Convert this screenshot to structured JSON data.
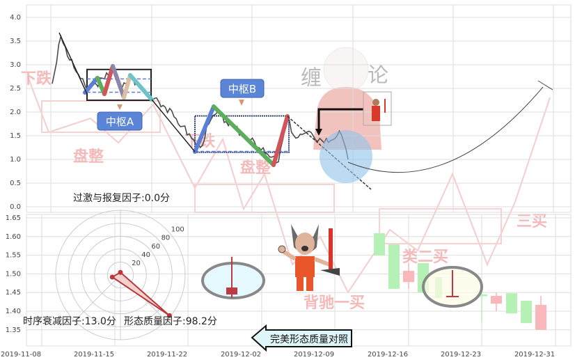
{
  "chart_data": [
    {
      "type": "line",
      "panel": "top",
      "yticks": [
        "0.0",
        "0.5",
        "1.0",
        "1.5",
        "2.0",
        "2.5",
        "3.0",
        "3.5",
        "4.0"
      ],
      "ylim": [
        0,
        4.2
      ],
      "grid": true,
      "price_series": [
        2.6,
        3.6,
        3.1,
        2.8,
        2.45,
        2.6,
        2.7,
        2.95,
        2.5,
        2.75,
        2.55,
        2.35,
        2.3,
        2.1,
        1.9,
        1.7,
        1.45,
        1.25,
        1.75,
        2.0,
        1.8,
        1.65,
        1.5,
        1.45,
        1.2,
        1.05,
        0.95,
        1.85,
        1.45,
        1.55,
        1.5,
        1.4,
        1.4,
        1.6,
        1.0
      ],
      "zhongshu": [
        {
          "label": "中枢A",
          "high": 2.9,
          "low": 2.25,
          "inner_high": 2.7,
          "inner_low": 2.42
        },
        {
          "label": "中枢B",
          "high": 1.92,
          "low": 1.15,
          "inner_high": 1.9,
          "inner_low": 1.17
        }
      ],
      "watermark": [
        "下跌",
        "盘整",
        "下跌",
        "盘整",
        "缠",
        "论",
        "背驰一买",
        "类二买",
        "三买"
      ],
      "factors": {
        "excess": "过激与报复因子:0.0分"
      }
    },
    {
      "type": "candlestick",
      "panel": "bottom",
      "yticks": [
        "1.35",
        "1.40",
        "1.45",
        "1.50",
        "1.55",
        "1.60",
        "1.65"
      ],
      "ylim": [
        1.31,
        1.66
      ],
      "xticks": [
        "2019-11-08",
        "2019-11-15",
        "2019-11-22",
        "2019-12-02",
        "2019-12-09",
        "2019-12-16",
        "2019-12-23",
        "2019-12-31"
      ],
      "grid": true,
      "candles": [
        {
          "o": 1.609,
          "h": 1.609,
          "l": 1.549,
          "c": 1.549
        },
        {
          "o": 1.579,
          "h": 1.579,
          "l": 1.46,
          "c": 1.46
        },
        {
          "o": 1.478,
          "h": 1.529,
          "l": 1.46,
          "c": 1.508
        },
        {
          "o": 1.529,
          "h": 1.529,
          "l": 1.45,
          "c": 1.45
        },
        {
          "o": 1.491,
          "h": 1.491,
          "l": 1.435,
          "c": 1.435
        },
        {
          "o": 1.445,
          "h": 1.45,
          "l": 1.372,
          "c": 1.44
        },
        {
          "o": 1.42,
          "h": 1.45,
          "l": 1.4,
          "c": 1.441
        },
        {
          "o": 1.448,
          "h": 1.448,
          "l": 1.394,
          "c": 1.394
        },
        {
          "o": 1.428,
          "h": 1.428,
          "l": 1.368,
          "c": 1.368
        },
        {
          "o": 1.35,
          "h": 1.441,
          "l": 1.35,
          "c": 1.417
        }
      ],
      "polar": {
        "rings": [
          "20",
          "40",
          "60",
          "80",
          "100"
        ],
        "values": [
          13.0,
          98.2,
          0.0
        ]
      },
      "factors": {
        "time_decay": "时序衰减因子:13.0分",
        "shape_quality": "形态质量因子:98.2分"
      },
      "compare_button": "完美形态质量对照"
    }
  ],
  "colors": {
    "up": "#f9b6bb",
    "down": "#b5f0b5",
    "price": "#444444",
    "box": "#222222",
    "inner": "#5b7fd6",
    "label_bg": "#5b86d8",
    "accent_red": "#c0393f"
  }
}
